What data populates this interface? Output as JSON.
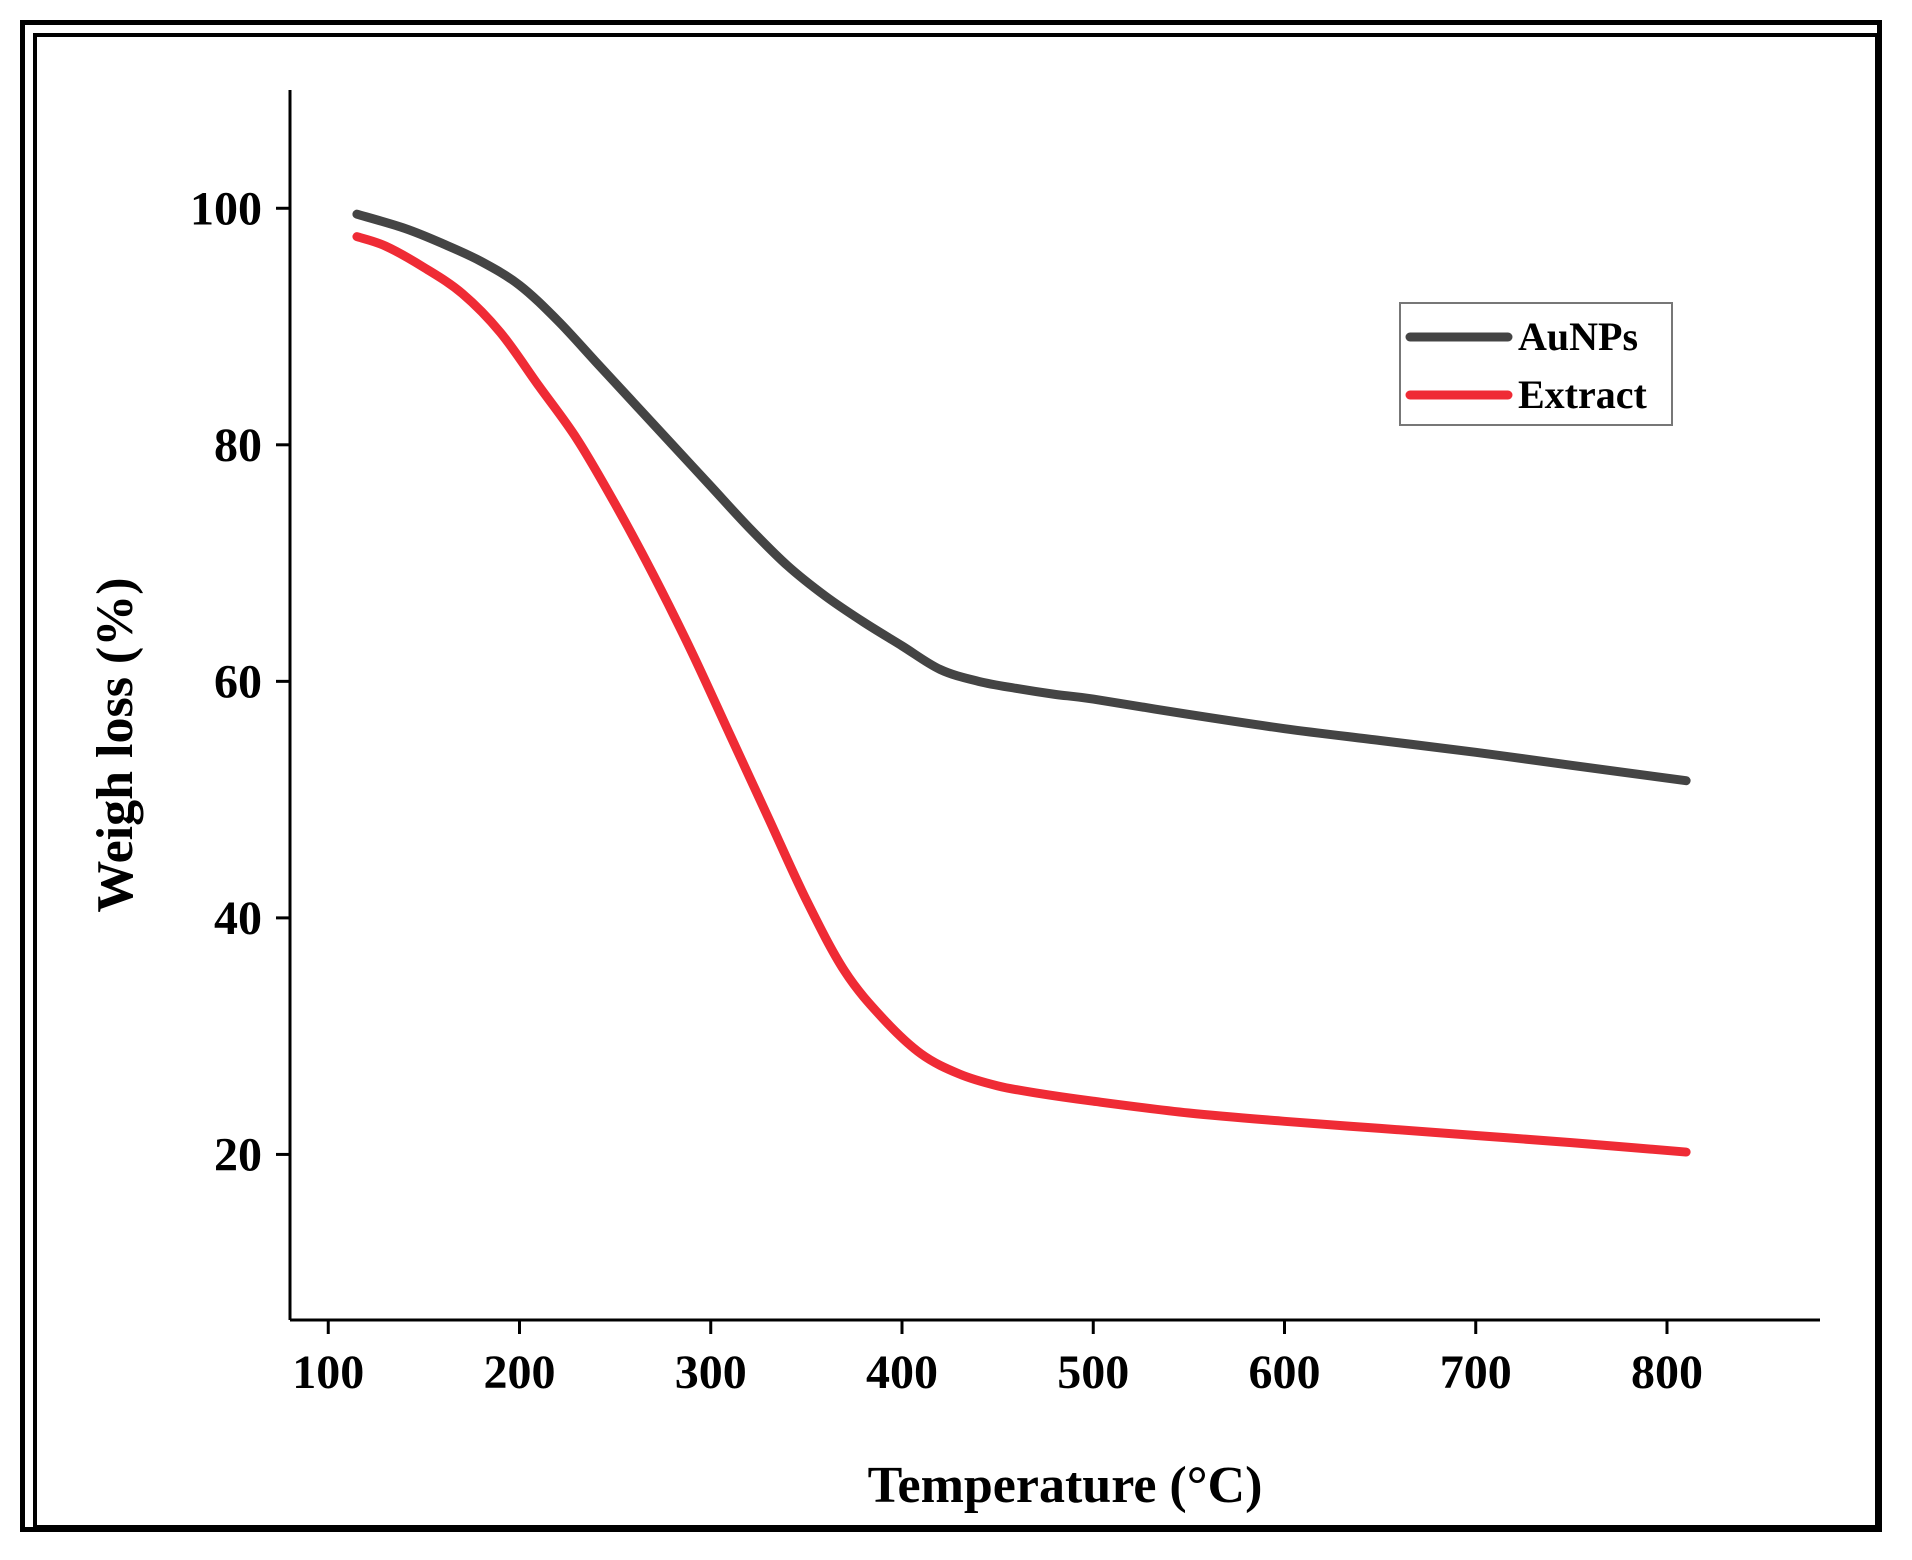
{
  "chart_data": {
    "type": "line",
    "xlabel": "Temperature (°C)",
    "ylabel": "Weigh loss (%)",
    "xlim": [
      80,
      880
    ],
    "ylim": [
      6,
      110
    ],
    "xticks": [
      100,
      200,
      300,
      400,
      500,
      600,
      700,
      800
    ],
    "yticks": [
      20,
      40,
      60,
      80,
      100
    ],
    "grid": false,
    "legend_position": "top-right",
    "series": [
      {
        "name": "AuNPs",
        "color": "#444444",
        "x": [
          115,
          140,
          160,
          180,
          200,
          220,
          240,
          260,
          280,
          300,
          320,
          340,
          360,
          380,
          400,
          420,
          440,
          460,
          480,
          500,
          550,
          600,
          650,
          700,
          750,
          810
        ],
        "y": [
          99.5,
          98.3,
          97.0,
          95.5,
          93.5,
          90.5,
          87.0,
          83.5,
          80.0,
          76.5,
          73.0,
          69.8,
          67.2,
          65.0,
          63.0,
          61.0,
          60.0,
          59.4,
          58.9,
          58.5,
          57.2,
          56.0,
          55.0,
          54.0,
          52.9,
          51.6
        ]
      },
      {
        "name": "Extract",
        "color": "#ef2b35",
        "x": [
          115,
          130,
          150,
          170,
          190,
          210,
          230,
          250,
          270,
          290,
          310,
          330,
          350,
          370,
          390,
          410,
          430,
          450,
          470,
          500,
          550,
          600,
          650,
          700,
          750,
          810
        ],
        "y": [
          97.6,
          96.8,
          95.0,
          92.8,
          89.5,
          85.0,
          80.5,
          75.0,
          69.0,
          62.5,
          55.5,
          48.5,
          41.5,
          35.5,
          31.5,
          28.5,
          26.8,
          25.8,
          25.2,
          24.5,
          23.5,
          22.8,
          22.2,
          21.6,
          21.0,
          20.2
        ]
      }
    ]
  }
}
